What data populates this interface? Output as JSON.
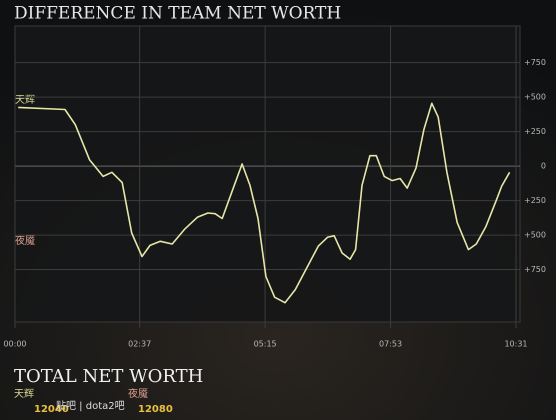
{
  "chart_data": {
    "type": "line",
    "title": "DIFFERENCE IN TEAM NET WORTH",
    "side_labels": [
      "天辉",
      "夜魇"
    ],
    "x": [
      4,
      63,
      76,
      94,
      111,
      122,
      135,
      147,
      160,
      170,
      183,
      198,
      214,
      230,
      243,
      252,
      261,
      274,
      286,
      296,
      306,
      316,
      327,
      340,
      353,
      365,
      382,
      394,
      402,
      412,
      422,
      429,
      437,
      447,
      455,
      465,
      475,
      485,
      494,
      505,
      515,
      525,
      533,
      544,
      557,
      571,
      581,
      593,
      606,
      613,
      623
    ],
    "series": [
      {
        "color": "#e6e6a8",
        "values": [
          425,
          410,
          300,
          45,
          -75,
          -45,
          -120,
          -485,
          -655,
          -575,
          -545,
          -565,
          -455,
          -370,
          -340,
          -345,
          -380,
          -175,
          15,
          -140,
          -380,
          -800,
          -950,
          -990,
          -895,
          -765,
          -580,
          -515,
          -505,
          -630,
          -675,
          -605,
          -140,
          75,
          75,
          -75,
          -105,
          -90,
          -160,
          -15,
          265,
          455,
          355,
          -45,
          -410,
          -605,
          -565,
          -440,
          -250,
          -145,
          -45
        ]
      }
    ],
    "xlim": [
      0,
      631
    ],
    "xticks": [
      {
        "value": 0,
        "label": "00:00"
      },
      {
        "value": 157,
        "label": "02:37"
      },
      {
        "value": 315,
        "label": "05:15"
      },
      {
        "value": 473,
        "label": "07:53"
      },
      {
        "value": 631,
        "label": "10:31"
      }
    ],
    "ylim": [
      -1130,
      1015
    ],
    "yticks": [
      {
        "value": -750,
        "label": "+750"
      },
      {
        "value": -500,
        "label": "+500"
      },
      {
        "value": -250,
        "label": "+250"
      },
      0,
      {
        "value": 250,
        "label": "+250"
      },
      {
        "value": 500,
        "label": "+500"
      },
      {
        "value": 750,
        "label": "+750"
      }
    ],
    "grid": true
  },
  "footer": {
    "title": "TOTAL NET WORTH",
    "radiant": "天辉",
    "radiant_value": "12040",
    "dire": "夜魇",
    "dire_value": "12080",
    "watermark": "贴吧 | dota2吧"
  }
}
